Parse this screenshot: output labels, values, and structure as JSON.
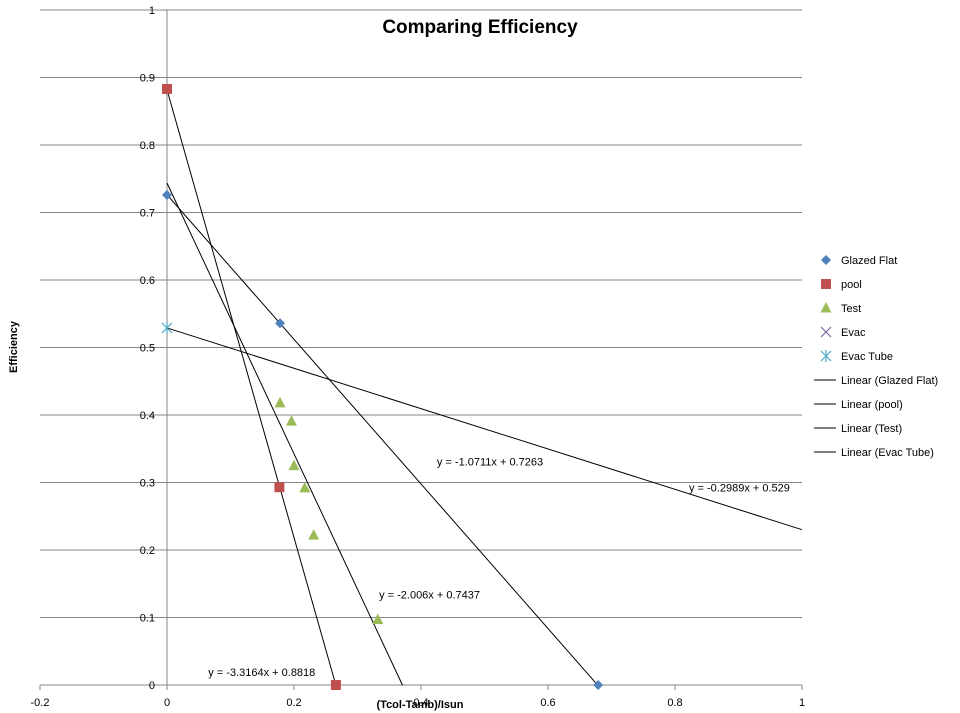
{
  "chart_data": {
    "type": "scatter",
    "title": "Comparing Efficiency",
    "xlabel": "(Tcol-Tamb)/Isun",
    "ylabel": "Efficiency",
    "xlim": [
      -0.2,
      1
    ],
    "ylim": [
      0,
      1
    ],
    "x_ticks": [
      "-0.2",
      "0",
      "0.2",
      "0.4",
      "0.6",
      "0.8",
      "1"
    ],
    "y_ticks": [
      "0",
      "0.1",
      "0.2",
      "0.3",
      "0.4",
      "0.5",
      "0.6",
      "0.7",
      "0.8",
      "0.9",
      "1"
    ],
    "grid": "horizontal",
    "legend_position": "right",
    "series": [
      {
        "name": "Glazed Flat",
        "marker": "diamond",
        "color": "#4f81bd",
        "points": [
          [
            0,
            0.726
          ],
          [
            0.178,
            0.536
          ],
          [
            0.679,
            0
          ]
        ]
      },
      {
        "name": "pool",
        "marker": "square",
        "color": "#c0504d",
        "points": [
          [
            0,
            0.883
          ],
          [
            0.177,
            0.293
          ],
          [
            0.266,
            0
          ]
        ]
      },
      {
        "name": "Test",
        "marker": "triangle",
        "color": "#9bbb59",
        "points": [
          [
            0.178,
            0.418
          ],
          [
            0.196,
            0.391
          ],
          [
            0.2,
            0.325
          ],
          [
            0.217,
            0.292
          ],
          [
            0.231,
            0.222
          ],
          [
            0.332,
            0.097
          ]
        ]
      },
      {
        "name": "Evac",
        "marker": "x",
        "color": "#8064a2",
        "points": []
      },
      {
        "name": "Evac Tube",
        "marker": "asterisk",
        "color": "#4bacc6",
        "points": [
          [
            0,
            0.529
          ]
        ]
      }
    ],
    "trendlines": [
      {
        "name": "Linear (Glazed Flat)",
        "slope": -1.0711,
        "intercept": 0.7263,
        "x_range": [
          0,
          0.679
        ],
        "equation": "y = -1.0711x + 0.7263",
        "eq_at": [
          0.425,
          0.325
        ]
      },
      {
        "name": "Linear (pool)",
        "slope": -3.3164,
        "intercept": 0.8818,
        "x_range": [
          0,
          0.266
        ],
        "equation": "y = -3.3164x + 0.8818",
        "eq_at": [
          0.065,
          0.013
        ]
      },
      {
        "name": "Linear (Test)",
        "slope": -2.006,
        "intercept": 0.7437,
        "x_range": [
          0,
          0.371
        ],
        "equation": "y = -2.006x + 0.7437",
        "eq_at": [
          0.334,
          0.128
        ]
      },
      {
        "name": "Linear (Evac Tube)",
        "slope": -0.2989,
        "intercept": 0.529,
        "x_range": [
          0,
          1
        ],
        "equation": "y = -0.2989x + 0.529",
        "eq_at": [
          0.822,
          0.287
        ]
      }
    ],
    "legend": [
      "Glazed Flat",
      "pool",
      "Test",
      "Evac",
      "Evac Tube",
      "Linear (Glazed Flat)",
      "Linear (pool)",
      "Linear (Test)",
      "Linear (Evac Tube)"
    ]
  }
}
